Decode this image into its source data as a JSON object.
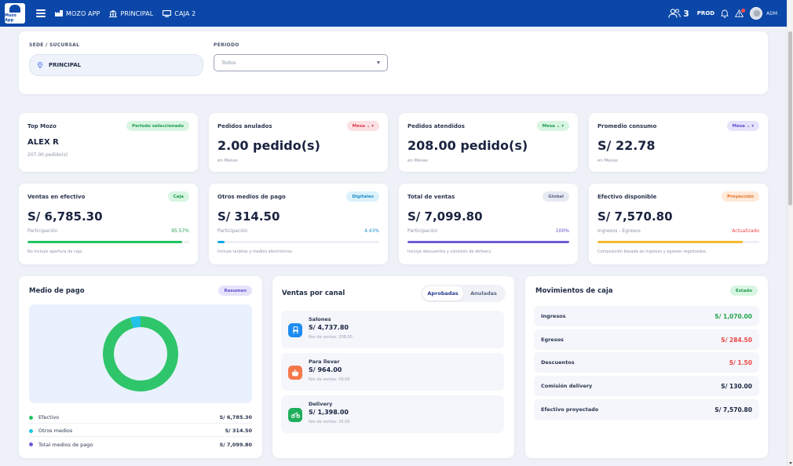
{
  "topbar": {
    "logo_text": "Mozo App",
    "nav": [
      {
        "label": "MOZO APP"
      },
      {
        "label": "PRINCIPAL"
      },
      {
        "label": "CAJA 2"
      }
    ],
    "users_count": "3",
    "env": "PROD",
    "user": "ADM",
    "brand_color": "#0b47a8"
  },
  "filters": {
    "sede_label": "SEDE / SUCURSAL",
    "sede_value": "PRINCIPAL",
    "periodo_label": "PERIODO",
    "periodo_value": "Todos"
  },
  "kpis": {
    "top_mozo": {
      "title": "Top Mozo",
      "badge": "Periodo seleccionado",
      "name": "ALEX R",
      "sub": "207.00 pedido(s)"
    },
    "anulados": {
      "title": "Pedidos anulados",
      "badge": "Mesa ⌄ ▾",
      "value": "2.00 pedido(s)",
      "sub": "en Mesas"
    },
    "atendidos": {
      "title": "Pedidos atendidos",
      "badge": "Mesa ⌄ ▾",
      "value": "208.00 pedido(s)",
      "sub": "en Mesas"
    },
    "promedio": {
      "title": "Promedio consumo",
      "badge": "Mesa ⌄ ▾",
      "value": "S/ 22.78",
      "sub": "en Mesas"
    }
  },
  "sales": {
    "efectivo": {
      "title": "Ventas en efectivo",
      "badge": "Caja",
      "value": "S/ 6,785.30",
      "left": "Participación",
      "right": "95.57%",
      "progress": 95.57,
      "note": "No incluye apertura de caja.",
      "color": "#22c55e"
    },
    "otros": {
      "title": "Otros medios de pago",
      "badge": "Digitales",
      "value": "S/ 314.50",
      "left": "Participación",
      "right": "4.43%",
      "progress": 4.43,
      "note": "Incluye tarjetas y medios electrónicos.",
      "color": "#0ea5e9"
    },
    "total": {
      "title": "Total de ventas",
      "badge": "Global",
      "value": "S/ 7,099.80",
      "left": "Participación",
      "right": "100%",
      "progress": 100,
      "note": "Incluye descuentos y comisión de delivery.",
      "color": "#6d5dd3"
    },
    "disponible": {
      "title": "Efectivo disponible",
      "badge": "Proyección",
      "value": "S/ 7,570.80",
      "left": "Ingresos - Egresos",
      "right": "Actualizado",
      "progress": 90,
      "note": "Composición basada en ingresos y egresos registrados.",
      "color": "#f5b82e"
    }
  },
  "medio_pago": {
    "title": "Medio de pago",
    "badge": "Resumen",
    "legend": [
      {
        "label": "Efectivo",
        "value": "S/ 6,785.30",
        "color": "#22c55e"
      },
      {
        "label": "Otros medios",
        "value": "S/ 314.50",
        "color": "#22c3e6"
      },
      {
        "label": "Total medios de pago",
        "value": "S/ 7,099.80",
        "color": "#6d5dd3"
      }
    ]
  },
  "chart_data": {
    "type": "pie",
    "categories": [
      "Efectivo",
      "Otros medios"
    ],
    "values": [
      6785.3,
      314.5
    ],
    "donut": true,
    "colors": [
      "#2fc56a",
      "#22c3e6"
    ]
  },
  "canal": {
    "title": "Ventas por canal",
    "tabs": [
      "Aprobadas",
      "Anuladas"
    ],
    "items": [
      {
        "name": "Salones",
        "amount": "S/ 4,737.80",
        "sub": "Nro de ventas: 208.00",
        "color": "#1d8cf0"
      },
      {
        "name": "Para llevar",
        "amount": "S/ 964.00",
        "sub": "Nro de ventas: 59.00",
        "color": "#f5784a"
      },
      {
        "name": "Delivery",
        "amount": "S/ 1,398.00",
        "sub": "Nro de ventas: 35.00",
        "color": "#1fae5c"
      }
    ]
  },
  "movimientos": {
    "title": "Movimientos de caja",
    "badge": "Estado",
    "rows": [
      {
        "label": "Ingresos",
        "value": "S/ 1,070.00",
        "color": "#22a34f"
      },
      {
        "label": "Egresos",
        "value": "S/ 284.50",
        "color": "#ef4444"
      },
      {
        "label": "Descuentos",
        "value": "S/ 1.50",
        "color": "#ef4444"
      },
      {
        "label": "Comisión delivery",
        "value": "S/ 130.00",
        "color": "#1a2340"
      },
      {
        "label": "Efectivo proyectado",
        "value": "S/ 7,570.80",
        "color": "#1a2340"
      }
    ]
  }
}
